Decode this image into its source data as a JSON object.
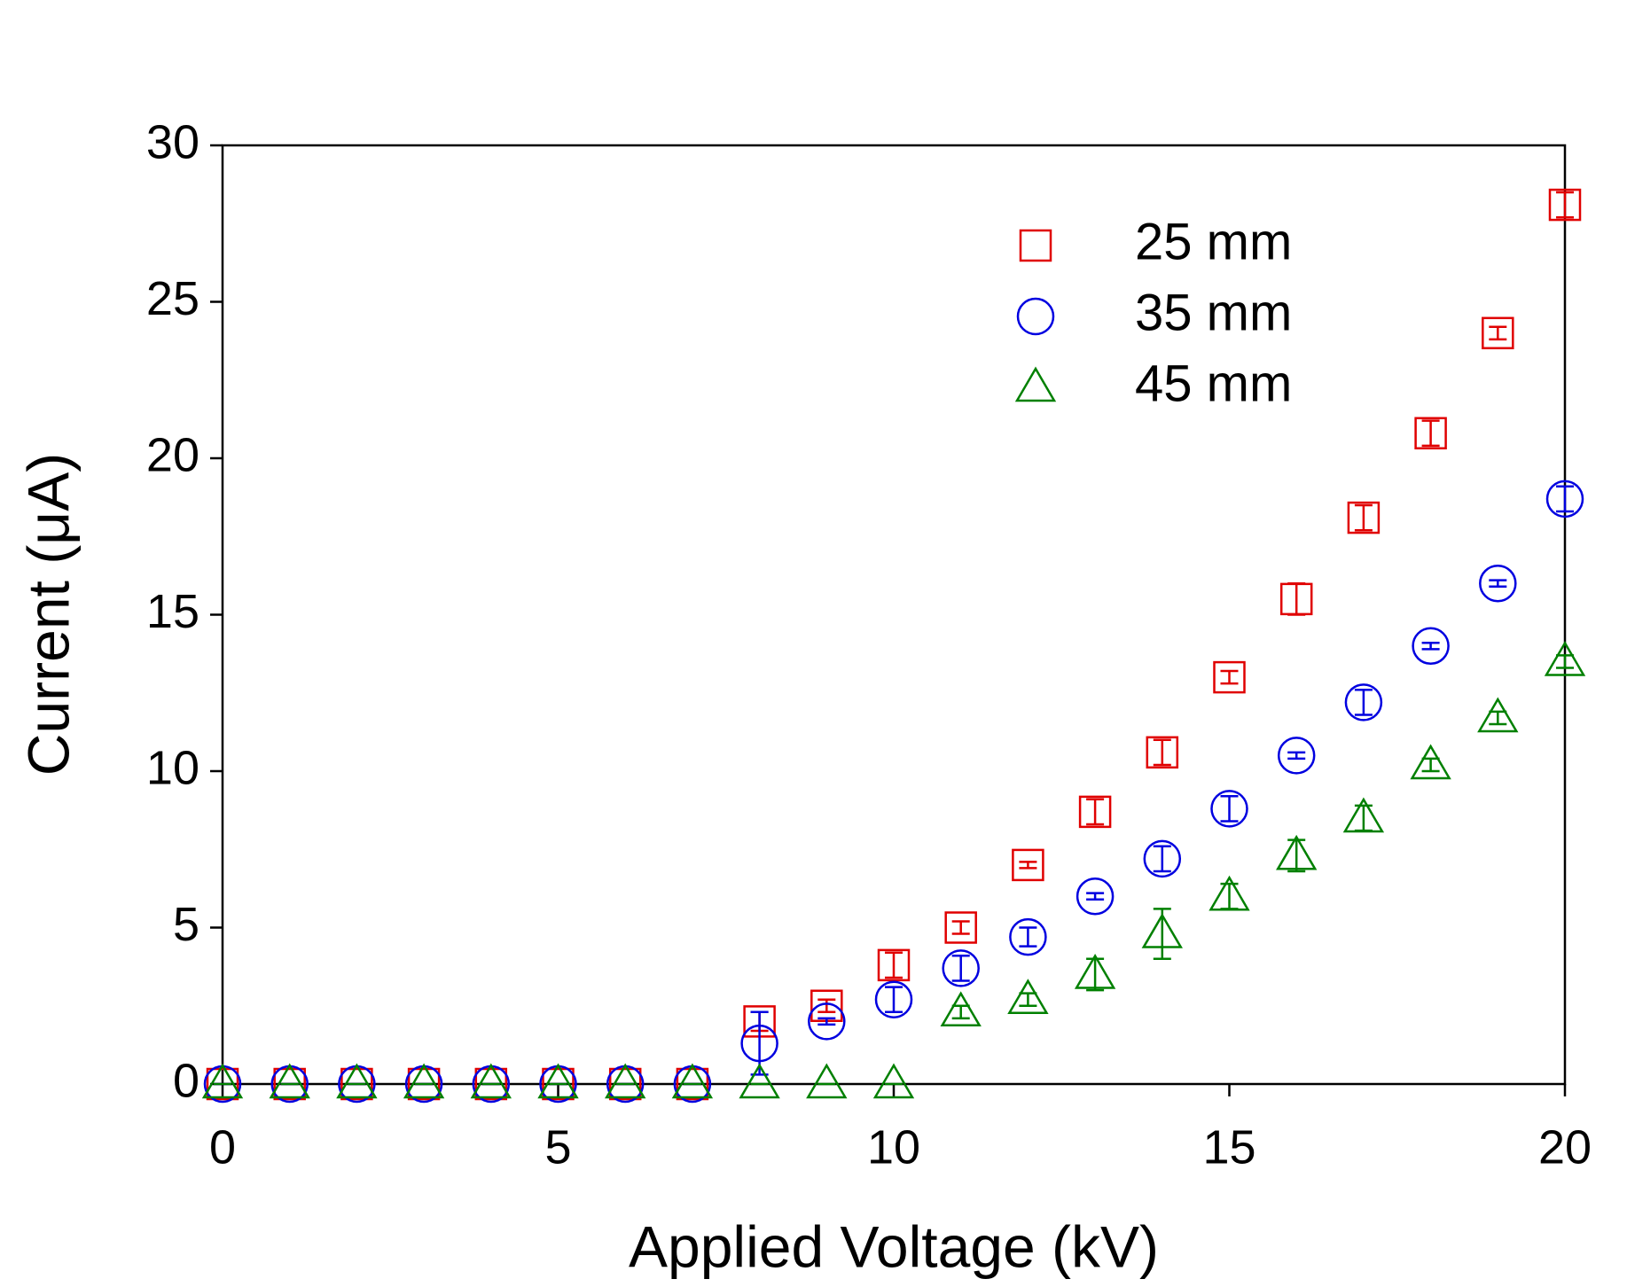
{
  "chart_data": {
    "type": "scatter",
    "xlabel": "Applied Voltage (kV)",
    "ylabel": "Current (μA)",
    "x": [
      0,
      1,
      2,
      3,
      4,
      5,
      6,
      7,
      8,
      9,
      10,
      11,
      12,
      13,
      14,
      15,
      16,
      17,
      18,
      19,
      20
    ],
    "series": [
      {
        "name": "25 mm",
        "color": "#e00000",
        "marker": "square",
        "values": [
          0,
          0,
          0,
          0,
          0,
          0,
          0,
          0,
          2.0,
          2.5,
          3.8,
          5.0,
          7.0,
          8.7,
          10.6,
          13.0,
          15.5,
          18.1,
          20.8,
          24.0,
          28.1
        ],
        "errors": [
          0,
          0,
          0,
          0,
          0,
          0,
          0,
          0,
          0.3,
          0.2,
          0.4,
          0.2,
          0.1,
          0.4,
          0.4,
          0.2,
          0.5,
          0.4,
          0.4,
          0.2,
          0.4
        ]
      },
      {
        "name": "35 mm",
        "color": "#0000e0",
        "marker": "circle",
        "values": [
          0,
          0,
          0,
          0,
          0,
          0,
          0,
          0,
          1.3,
          2.0,
          2.7,
          3.7,
          4.7,
          6.0,
          7.2,
          8.8,
          10.5,
          12.2,
          14.0,
          16.0,
          18.7
        ],
        "errors": [
          0,
          0,
          0,
          0,
          0,
          0,
          0,
          0,
          1.0,
          0.1,
          0.4,
          0.4,
          0.3,
          0.1,
          0.4,
          0.4,
          0.1,
          0.4,
          0.1,
          0.1,
          0.4
        ]
      },
      {
        "name": "45 mm",
        "color": "#008000",
        "marker": "triangle",
        "values": [
          0,
          0,
          0,
          0,
          0,
          0,
          0,
          0,
          0,
          0,
          0,
          2.3,
          2.7,
          3.5,
          4.8,
          6.0,
          7.3,
          8.5,
          10.2,
          11.7,
          13.5
        ],
        "errors": [
          0,
          0,
          0,
          0,
          0,
          0,
          0,
          0,
          0,
          0,
          0,
          0.2,
          0.2,
          0.5,
          0.8,
          0.4,
          0.5,
          0.4,
          0.2,
          0.2,
          0.2
        ]
      }
    ],
    "xlim": [
      0,
      20
    ],
    "xticks": [
      0,
      5,
      10,
      15,
      20
    ],
    "ylim": [
      0,
      30
    ],
    "yticks": [
      0,
      5,
      10,
      15,
      20,
      25,
      30
    ],
    "grid": false,
    "legend": "upper center"
  }
}
